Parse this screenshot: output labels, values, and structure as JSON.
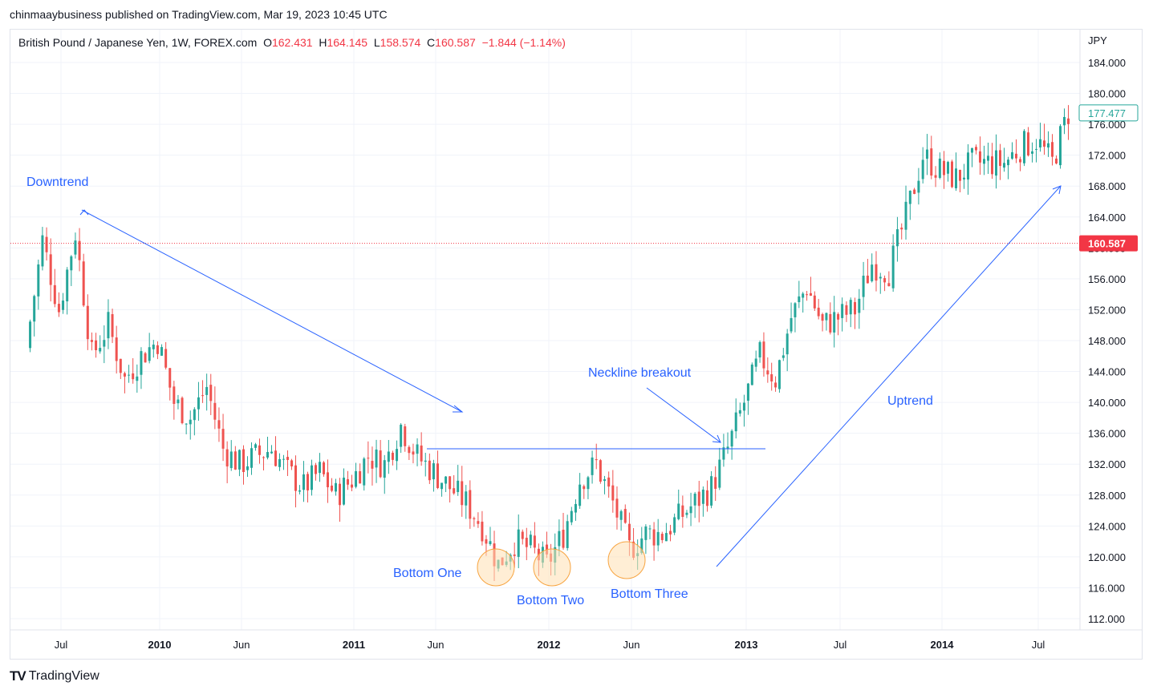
{
  "publisher": "chinmaaybusiness published on TradingView.com, Mar 19, 2023 10:45 UTC",
  "header": {
    "symbol": "British Pound / Japanese Yen, 1W, FOREX.com",
    "open_label": "O",
    "open": "162.431",
    "high_label": "H",
    "high": "164.145",
    "low_label": "L",
    "low": "158.574",
    "close_label": "C",
    "close": "160.587",
    "change": "−1.844 (−1.14%)"
  },
  "footer": {
    "logo_mark": "TV",
    "logo_text": "TradingView"
  },
  "colors": {
    "up": "#26a69a",
    "down": "#ef5350",
    "annotation": "#2962ff",
    "last_price": "#f23645",
    "current_price": "#26a69a",
    "bottom_fill": "#ffe0b2",
    "bottom_stroke": "#f7a440"
  },
  "chart_data": {
    "type": "candlestick",
    "currency_label": "JPY",
    "y_ticks": [
      "184.000",
      "180.000",
      "176.000",
      "172.000",
      "168.000",
      "164.000",
      "160.000",
      "156.000",
      "152.000",
      "148.000",
      "144.000",
      "140.000",
      "136.000",
      "132.000",
      "128.000",
      "124.000",
      "120.000",
      "116.000",
      "112.000"
    ],
    "x_ticks": [
      {
        "label": "Jul",
        "date": "2009-07",
        "bold": false
      },
      {
        "label": "2010",
        "date": "2010-01",
        "bold": true
      },
      {
        "label": "Jun",
        "date": "2010-06",
        "bold": false
      },
      {
        "label": "2011",
        "date": "2011-01",
        "bold": true
      },
      {
        "label": "Jun",
        "date": "2011-06",
        "bold": false
      },
      {
        "label": "2012",
        "date": "2012-01",
        "bold": true
      },
      {
        "label": "Jun",
        "date": "2012-06",
        "bold": false
      },
      {
        "label": "2013",
        "date": "2013-01",
        "bold": true
      },
      {
        "label": "Jul",
        "date": "2013-07",
        "bold": false
      },
      {
        "label": "2014",
        "date": "2014-01",
        "bold": true
      },
      {
        "label": "Jul",
        "date": "2014-07",
        "bold": false
      }
    ],
    "ylim": [
      110.0,
      186.0
    ],
    "price_lines": [
      {
        "value": 160.587,
        "label": "160.587",
        "style": "dotted",
        "color": "#f23645"
      },
      {
        "value": 177.477,
        "label": "177.477",
        "style": "marker",
        "color": "#26a69a"
      }
    ],
    "closes_approx": [
      {
        "date": "2009-05",
        "close": 147.0
      },
      {
        "date": "2009-06",
        "close": 161.0
      },
      {
        "date": "2009-07",
        "close": 152.0
      },
      {
        "date": "2009-08",
        "close": 162.0
      },
      {
        "date": "2009-09",
        "close": 146.0
      },
      {
        "date": "2009-10",
        "close": 150.0
      },
      {
        "date": "2009-11",
        "close": 143.0
      },
      {
        "date": "2009-12",
        "close": 146.0
      },
      {
        "date": "2010-01",
        "close": 148.0
      },
      {
        "date": "2010-02",
        "close": 140.0
      },
      {
        "date": "2010-03",
        "close": 138.0
      },
      {
        "date": "2010-04",
        "close": 142.0
      },
      {
        "date": "2010-05",
        "close": 134.0
      },
      {
        "date": "2010-06",
        "close": 132.0
      },
      {
        "date": "2010-07",
        "close": 133.0
      },
      {
        "date": "2010-08",
        "close": 134.0
      },
      {
        "date": "2010-09",
        "close": 131.0
      },
      {
        "date": "2010-10",
        "close": 129.0
      },
      {
        "date": "2010-11",
        "close": 131.0
      },
      {
        "date": "2010-12",
        "close": 128.0
      },
      {
        "date": "2011-01",
        "close": 130.0
      },
      {
        "date": "2011-02",
        "close": 133.0
      },
      {
        "date": "2011-03",
        "close": 132.0
      },
      {
        "date": "2011-04",
        "close": 137.0
      },
      {
        "date": "2011-05",
        "close": 133.0
      },
      {
        "date": "2011-06",
        "close": 131.0
      },
      {
        "date": "2011-07",
        "close": 129.0
      },
      {
        "date": "2011-08",
        "close": 127.0
      },
      {
        "date": "2011-09",
        "close": 124.0
      },
      {
        "date": "2011-10",
        "close": 119.0
      },
      {
        "date": "2011-11",
        "close": 122.0
      },
      {
        "date": "2011-12",
        "close": 121.0
      },
      {
        "date": "2012-01",
        "close": 119.0
      },
      {
        "date": "2012-02",
        "close": 123.0
      },
      {
        "date": "2012-03",
        "close": 130.0
      },
      {
        "date": "2012-04",
        "close": 132.0
      },
      {
        "date": "2012-05",
        "close": 127.0
      },
      {
        "date": "2012-06",
        "close": 121.0
      },
      {
        "date": "2012-07",
        "close": 123.0
      },
      {
        "date": "2012-08",
        "close": 123.0
      },
      {
        "date": "2012-09",
        "close": 125.0
      },
      {
        "date": "2012-10",
        "close": 127.0
      },
      {
        "date": "2012-11",
        "close": 129.0
      },
      {
        "date": "2012-12",
        "close": 134.0
      },
      {
        "date": "2013-01",
        "close": 140.0
      },
      {
        "date": "2013-02",
        "close": 146.0
      },
      {
        "date": "2013-03",
        "close": 143.0
      },
      {
        "date": "2013-04",
        "close": 151.0
      },
      {
        "date": "2013-05",
        "close": 155.0
      },
      {
        "date": "2013-06",
        "close": 150.0
      },
      {
        "date": "2013-07",
        "close": 151.0
      },
      {
        "date": "2013-08",
        "close": 152.0
      },
      {
        "date": "2013-09",
        "close": 158.0
      },
      {
        "date": "2013-10",
        "close": 157.0
      },
      {
        "date": "2013-11",
        "close": 164.0
      },
      {
        "date": "2013-12",
        "close": 172.0
      },
      {
        "date": "2014-01",
        "close": 170.0
      },
      {
        "date": "2014-02",
        "close": 169.0
      },
      {
        "date": "2014-03",
        "close": 171.0
      },
      {
        "date": "2014-04",
        "close": 171.0
      },
      {
        "date": "2014-05",
        "close": 171.0
      },
      {
        "date": "2014-06",
        "close": 173.0
      },
      {
        "date": "2014-07",
        "close": 174.0
      },
      {
        "date": "2014-08",
        "close": 171.0
      },
      {
        "date": "2014-09",
        "close": 177.5
      }
    ],
    "annotations": {
      "downtrend": "Downtrend",
      "neckline": "Neckline breakout",
      "uptrend": "Uptrend",
      "bottom_one": "Bottom One",
      "bottom_two": "Bottom Two",
      "bottom_three": "Bottom Three"
    }
  }
}
